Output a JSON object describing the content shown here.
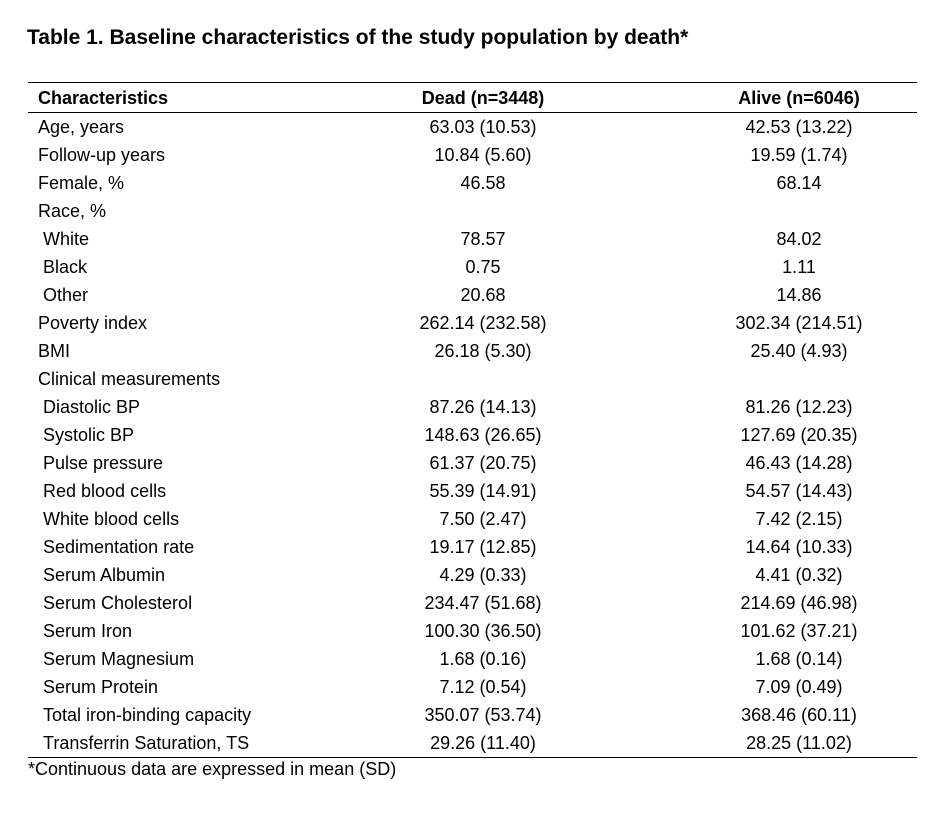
{
  "title": "Table 1. Baseline characteristics of the study population by death*",
  "header": {
    "characteristics": "Characteristics",
    "dead": "Dead (n=3448)",
    "alive": "Alive (n=6046)"
  },
  "rows": [
    {
      "label": "Age, years",
      "indent": false,
      "dead": "63.03 (10.53)",
      "alive": "42.53 (13.22)"
    },
    {
      "label": "Follow-up years",
      "indent": false,
      "dead": "10.84 (5.60)",
      "alive": "19.59 (1.74)"
    },
    {
      "label": "Female, %",
      "indent": false,
      "dead": "46.58",
      "alive": "68.14"
    },
    {
      "label": "Race, %",
      "indent": false,
      "dead": "",
      "alive": ""
    },
    {
      "label": "White",
      "indent": true,
      "dead": "78.57",
      "alive": "84.02"
    },
    {
      "label": "Black",
      "indent": true,
      "dead": "0.75",
      "alive": "1.11"
    },
    {
      "label": "Other",
      "indent": true,
      "dead": "20.68",
      "alive": "14.86"
    },
    {
      "label": "Poverty index",
      "indent": false,
      "dead": "262.14 (232.58)",
      "alive": "302.34 (214.51)"
    },
    {
      "label": "BMI",
      "indent": false,
      "dead": "26.18 (5.30)",
      "alive": "25.40 (4.93)"
    },
    {
      "label": "Clinical measurements",
      "indent": false,
      "dead": "",
      "alive": ""
    },
    {
      "label": "Diastolic BP",
      "indent": true,
      "dead": "87.26 (14.13)",
      "alive": "81.26 (12.23)"
    },
    {
      "label": "Systolic BP",
      "indent": true,
      "dead": "148.63 (26.65)",
      "alive": "127.69 (20.35)"
    },
    {
      "label": "Pulse pressure",
      "indent": true,
      "dead": "61.37 (20.75)",
      "alive": "46.43 (14.28)"
    },
    {
      "label": "Red blood cells",
      "indent": true,
      "dead": "55.39 (14.91)",
      "alive": "54.57 (14.43)"
    },
    {
      "label": "White blood cells",
      "indent": true,
      "dead": "7.50 (2.47)",
      "alive": "7.42 (2.15)"
    },
    {
      "label": "Sedimentation rate",
      "indent": true,
      "dead": "19.17 (12.85)",
      "alive": "14.64 (10.33)"
    },
    {
      "label": "Serum Albumin",
      "indent": true,
      "dead": "4.29 (0.33)",
      "alive": "4.41 (0.32)"
    },
    {
      "label": "Serum Cholesterol",
      "indent": true,
      "dead": "234.47 (51.68)",
      "alive": "214.69 (46.98)"
    },
    {
      "label": "Serum Iron",
      "indent": true,
      "dead": "100.30 (36.50)",
      "alive": "101.62 (37.21)"
    },
    {
      "label": "Serum Magnesium",
      "indent": true,
      "dead": "1.68 (0.16)",
      "alive": "1.68 (0.14)"
    },
    {
      "label": "Serum Protein",
      "indent": true,
      "dead": "7.12 (0.54)",
      "alive": "7.09 (0.49)"
    },
    {
      "label": "Total iron-binding capacity",
      "indent": true,
      "dead": "350.07 (53.74)",
      "alive": "368.46 (60.11)"
    },
    {
      "label": "Transferrin Saturation, TS",
      "indent": true,
      "dead": "29.26 (11.40)",
      "alive": "28.25 (11.02)"
    }
  ],
  "footnote": "*Continuous data are expressed in mean (SD)"
}
